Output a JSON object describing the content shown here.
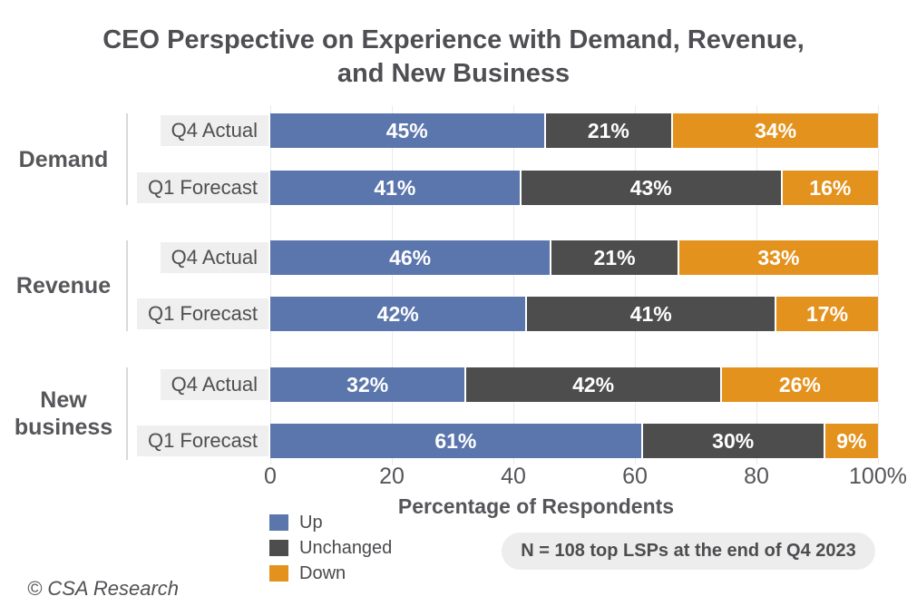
{
  "title": {
    "line1": "CEO Perspective on Experience with Demand, Revenue,",
    "line2": "and New Business"
  },
  "chart_data": {
    "type": "bar",
    "orientation": "horizontal",
    "stacked": true,
    "title": "CEO Perspective on Experience with Demand, Revenue, and New Business",
    "xlabel": "Percentage of Respondents",
    "xlim": [
      0,
      100
    ],
    "x_ticks": [
      "0",
      "20",
      "40",
      "60",
      "80",
      "100%"
    ],
    "grid": "vertical",
    "legend_position": "bottom-left",
    "value_suffix": "%",
    "series": [
      {
        "name": "Up",
        "color": "#5B76AD"
      },
      {
        "name": "Unchanged",
        "color": "#4D4D4D"
      },
      {
        "name": "Down",
        "color": "#E4921E"
      }
    ],
    "groups": [
      {
        "label": "Demand",
        "rows": [
          {
            "label": "Q4 Actual",
            "values": [
              45,
              21,
              34
            ]
          },
          {
            "label": "Q1 Forecast",
            "values": [
              41,
              43,
              16
            ]
          }
        ]
      },
      {
        "label": "Revenue",
        "rows": [
          {
            "label": "Q4 Actual",
            "values": [
              46,
              21,
              33
            ]
          },
          {
            "label": "Q1 Forecast",
            "values": [
              42,
              41,
              17
            ]
          }
        ]
      },
      {
        "label": "New business",
        "rows": [
          {
            "label": "Q4 Actual",
            "values": [
              32,
              42,
              26
            ]
          },
          {
            "label": "Q1 Forecast",
            "values": [
              61,
              30,
              9
            ]
          }
        ]
      }
    ]
  },
  "note": "N = 108 top LSPs at the end of Q4 2023",
  "footer": "© CSA Research",
  "colors": {
    "up": "#5B76AD",
    "unchanged": "#4D4D4D",
    "down": "#E4921E",
    "row_label_bg": "#EFEFEF",
    "note_bg": "#EDEDED",
    "gridline": "#EAEAEA",
    "separator": "#D9D9D9",
    "text": "#56565A",
    "bar_value_text": "#FFFFFF"
  }
}
